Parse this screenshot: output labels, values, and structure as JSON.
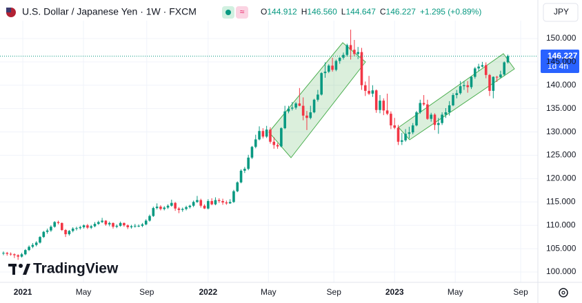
{
  "chart_data": {
    "type": "candlestick",
    "title": "U.S. Dollar / Japanese Yen · 1W · FXCM",
    "ohlc_header": [
      {
        "label": "O",
        "value": "144.912"
      },
      {
        "label": "H",
        "value": "146.560"
      },
      {
        "label": "L",
        "value": "144.647"
      },
      {
        "label": "C",
        "value": "146.227"
      }
    ],
    "change": "+1.295 (+0.89%)",
    "currency": "JPY",
    "countdown": "1d 4h",
    "watermark": "TradingView",
    "up_color": "#089981",
    "down_color": "#f23645",
    "grid": true,
    "xlim": [
      -0.94,
      146.2
    ],
    "xticks": [
      {
        "value": 5.3,
        "label": "2021"
      },
      {
        "value": 21.9,
        "label": "May"
      },
      {
        "value": 39.2,
        "label": "Sep"
      },
      {
        "value": 56,
        "label": "2022"
      },
      {
        "value": 72.5,
        "label": "May"
      },
      {
        "value": 90.4,
        "label": "Sep"
      },
      {
        "value": 107,
        "label": "2023"
      },
      {
        "value": 123.6,
        "label": "May"
      },
      {
        "value": 141.5,
        "label": "Sep"
      }
    ],
    "ylim": [
      97.79,
      153.83
    ],
    "yticks": [
      {
        "value": 100,
        "label": "100.000"
      },
      {
        "value": 105,
        "label": "105.000"
      },
      {
        "value": 110,
        "label": "110.000"
      },
      {
        "value": 115,
        "label": "115.000"
      },
      {
        "value": 120,
        "label": "120.000"
      },
      {
        "value": 125,
        "label": "125.000"
      },
      {
        "value": 130,
        "label": "130.000"
      },
      {
        "value": 135,
        "label": "135.000"
      },
      {
        "value": 140,
        "label": "140.000"
      },
      {
        "value": 145,
        "label": "145.000"
      },
      {
        "value": 150,
        "label": "150.000"
      }
    ],
    "candles": [
      [
        104.0,
        104.4,
        103.6,
        104.1
      ],
      [
        104.1,
        104.3,
        103.5,
        103.9
      ],
      [
        103.9,
        104.2,
        103.5,
        103.8
      ],
      [
        103.8,
        104.0,
        103.0,
        103.6
      ],
      [
        103.6,
        103.8,
        102.6,
        103.3
      ],
      [
        103.3,
        104.1,
        103.1,
        103.8
      ],
      [
        103.8,
        104.9,
        103.6,
        104.7
      ],
      [
        104.7,
        105.7,
        104.5,
        105.4
      ],
      [
        105.4,
        106.2,
        105.1,
        105.8
      ],
      [
        105.8,
        106.6,
        105.5,
        106.3
      ],
      [
        106.3,
        107.7,
        106.1,
        107.5
      ],
      [
        107.5,
        108.8,
        107.3,
        108.6
      ],
      [
        108.6,
        109.3,
        108.2,
        108.9
      ],
      [
        108.9,
        110.0,
        108.6,
        109.7
      ],
      [
        109.7,
        110.9,
        109.5,
        110.7
      ],
      [
        110.7,
        111.0,
        110.2,
        110.5
      ],
      [
        110.5,
        110.6,
        108.8,
        109.0
      ],
      [
        109.0,
        109.2,
        107.5,
        108.1
      ],
      [
        108.1,
        109.0,
        107.8,
        108.8
      ],
      [
        108.8,
        109.6,
        108.5,
        109.3
      ],
      [
        109.3,
        109.7,
        108.9,
        109.4
      ],
      [
        109.4,
        109.9,
        109.1,
        109.6
      ],
      [
        109.6,
        110.2,
        109.3,
        110.0
      ],
      [
        110.0,
        110.3,
        109.2,
        109.5
      ],
      [
        109.5,
        110.1,
        109.2,
        109.8
      ],
      [
        109.8,
        110.7,
        109.6,
        110.3
      ],
      [
        110.3,
        111.0,
        110.1,
        110.7
      ],
      [
        110.7,
        111.6,
        110.5,
        111.0
      ],
      [
        111.0,
        111.1,
        109.9,
        110.2
      ],
      [
        110.2,
        110.8,
        109.8,
        110.5
      ],
      [
        110.5,
        110.6,
        109.3,
        109.7
      ],
      [
        109.7,
        110.2,
        109.4,
        109.9
      ],
      [
        109.9,
        110.8,
        109.7,
        110.5
      ],
      [
        110.5,
        110.6,
        109.7,
        110.0
      ],
      [
        110.0,
        110.2,
        109.2,
        109.6
      ],
      [
        109.6,
        110.1,
        109.3,
        109.8
      ],
      [
        109.8,
        110.3,
        109.5,
        109.9
      ],
      [
        109.9,
        110.2,
        109.6,
        109.9
      ],
      [
        109.9,
        110.5,
        109.6,
        110.2
      ],
      [
        110.2,
        111.3,
        110.0,
        111.0
      ],
      [
        111.0,
        112.3,
        110.8,
        112.0
      ],
      [
        112.0,
        114.0,
        111.8,
        113.7
      ],
      [
        113.7,
        114.7,
        113.4,
        114.0
      ],
      [
        114.0,
        114.3,
        113.2,
        113.5
      ],
      [
        113.5,
        114.1,
        113.2,
        113.8
      ],
      [
        113.8,
        114.5,
        113.5,
        114.2
      ],
      [
        114.2,
        115.5,
        114.0,
        114.8
      ],
      [
        114.8,
        115.0,
        113.1,
        113.6
      ],
      [
        113.6,
        113.9,
        112.6,
        113.3
      ],
      [
        113.3,
        113.8,
        112.9,
        113.5
      ],
      [
        113.5,
        114.2,
        113.2,
        113.9
      ],
      [
        113.9,
        114.4,
        113.6,
        114.2
      ],
      [
        114.2,
        115.3,
        113.9,
        115.0
      ],
      [
        115.0,
        116.3,
        114.8,
        115.4
      ],
      [
        115.4,
        115.7,
        113.8,
        114.2
      ],
      [
        114.2,
        114.5,
        113.5,
        113.6
      ],
      [
        113.6,
        115.6,
        113.4,
        115.2
      ],
      [
        115.2,
        115.8,
        114.3,
        114.5
      ],
      [
        114.5,
        116.0,
        114.3,
        115.4
      ],
      [
        115.4,
        115.8,
        114.8,
        115.2
      ],
      [
        115.2,
        115.7,
        114.4,
        114.9
      ],
      [
        114.9,
        115.3,
        114.4,
        114.7
      ],
      [
        114.7,
        115.6,
        114.6,
        115.0
      ],
      [
        115.0,
        117.6,
        114.8,
        117.3
      ],
      [
        117.3,
        119.4,
        117.1,
        119.2
      ],
      [
        119.2,
        122.0,
        119.0,
        121.7
      ],
      [
        121.7,
        122.5,
        121.2,
        122.1
      ],
      [
        122.1,
        125.1,
        121.8,
        124.5
      ],
      [
        124.5,
        127.0,
        124.2,
        126.8
      ],
      [
        126.8,
        129.4,
        126.5,
        128.4
      ],
      [
        128.4,
        131.2,
        128.2,
        130.2
      ],
      [
        130.2,
        130.8,
        128.6,
        129.0
      ],
      [
        129.0,
        131.3,
        128.7,
        130.5
      ],
      [
        130.5,
        131.0,
        127.5,
        127.9
      ],
      [
        127.9,
        128.9,
        126.4,
        127.2
      ],
      [
        127.2,
        127.6,
        126.4,
        126.9
      ],
      [
        126.9,
        131.0,
        126.7,
        130.8
      ],
      [
        130.8,
        135.6,
        130.6,
        134.4
      ],
      [
        134.4,
        135.6,
        134.0,
        135.0
      ],
      [
        135.0,
        136.4,
        134.6,
        135.2
      ],
      [
        135.2,
        136.4,
        134.8,
        136.1
      ],
      [
        136.1,
        139.4,
        135.5,
        135.6
      ],
      [
        135.6,
        137.4,
        132.5,
        133.5
      ],
      [
        133.5,
        134.5,
        130.4,
        133.0
      ],
      [
        133.0,
        135.6,
        132.7,
        134.2
      ],
      [
        134.2,
        137.1,
        134.0,
        136.9
      ],
      [
        136.9,
        139.0,
        136.5,
        138.0
      ],
      [
        138.0,
        142.8,
        137.8,
        142.6
      ],
      [
        142.6,
        144.9,
        141.6,
        142.9
      ],
      [
        142.9,
        144.5,
        142.6,
        144.2
      ],
      [
        144.2,
        145.9,
        142.9,
        143.3
      ],
      [
        143.3,
        145.5,
        143.0,
        145.2
      ],
      [
        145.2,
        146.0,
        144.6,
        145.9
      ],
      [
        145.9,
        147.0,
        145.5,
        146.5
      ],
      [
        146.5,
        148.9,
        146.2,
        148.6
      ],
      [
        148.6,
        151.9,
        145.5,
        147.6
      ],
      [
        147.6,
        149.7,
        146.2,
        146.7
      ],
      [
        146.7,
        148.2,
        145.6,
        147.1
      ],
      [
        147.1,
        148.0,
        139.0,
        140.0
      ],
      [
        140.0,
        140.8,
        137.7,
        138.8
      ],
      [
        138.8,
        142.0,
        137.9,
        138.2
      ],
      [
        138.2,
        140.0,
        137.5,
        138.9
      ],
      [
        138.9,
        139.1,
        134.1,
        134.7
      ],
      [
        134.7,
        137.9,
        134.0,
        136.7
      ],
      [
        136.7,
        137.2,
        133.6,
        134.6
      ],
      [
        134.6,
        138.2,
        133.6,
        133.9
      ],
      [
        133.9,
        134.4,
        130.6,
        131.4
      ],
      [
        131.4,
        133.0,
        130.6,
        130.9
      ],
      [
        130.9,
        131.5,
        127.2,
        127.9
      ],
      [
        127.9,
        129.8,
        127.2,
        128.2
      ],
      [
        128.2,
        130.6,
        127.9,
        129.6
      ],
      [
        129.6,
        131.1,
        128.6,
        129.9
      ],
      [
        129.9,
        131.9,
        129.5,
        131.4
      ],
      [
        131.4,
        134.5,
        131.2,
        134.2
      ],
      [
        134.2,
        136.9,
        133.9,
        136.2
      ],
      [
        136.2,
        137.9,
        135.6,
        135.9
      ],
      [
        135.9,
        136.9,
        132.6,
        132.8
      ],
      [
        132.8,
        134.1,
        132.2,
        133.7
      ],
      [
        133.7,
        134.0,
        130.4,
        131.5
      ],
      [
        131.5,
        133.0,
        129.6,
        131.9
      ],
      [
        131.9,
        134.2,
        131.5,
        133.7
      ],
      [
        133.7,
        135.1,
        133.0,
        134.2
      ],
      [
        134.2,
        136.6,
        133.5,
        135.7
      ],
      [
        135.7,
        138.3,
        135.5,
        137.9
      ],
      [
        137.9,
        139.0,
        137.2,
        138.3
      ],
      [
        138.3,
        140.9,
        138.0,
        139.8
      ],
      [
        139.8,
        140.9,
        139.0,
        140.0
      ],
      [
        140.0,
        140.9,
        138.4,
        139.6
      ],
      [
        139.6,
        142.0,
        139.2,
        141.8
      ],
      [
        141.8,
        143.9,
        141.4,
        143.6
      ],
      [
        143.6,
        144.6,
        143.0,
        144.0
      ],
      [
        144.0,
        145.0,
        143.8,
        144.3
      ],
      [
        144.3,
        144.9,
        141.5,
        142.2
      ],
      [
        142.2,
        142.4,
        137.7,
        138.8
      ],
      [
        138.8,
        141.9,
        137.2,
        141.8
      ],
      [
        141.8,
        142.0,
        140.7,
        141.7
      ],
      [
        141.7,
        143.1,
        141.5,
        142.3
      ],
      [
        142.3,
        145.1,
        142.0,
        144.9
      ],
      [
        144.912,
        146.56,
        144.647,
        146.227
      ]
    ]
  }
}
